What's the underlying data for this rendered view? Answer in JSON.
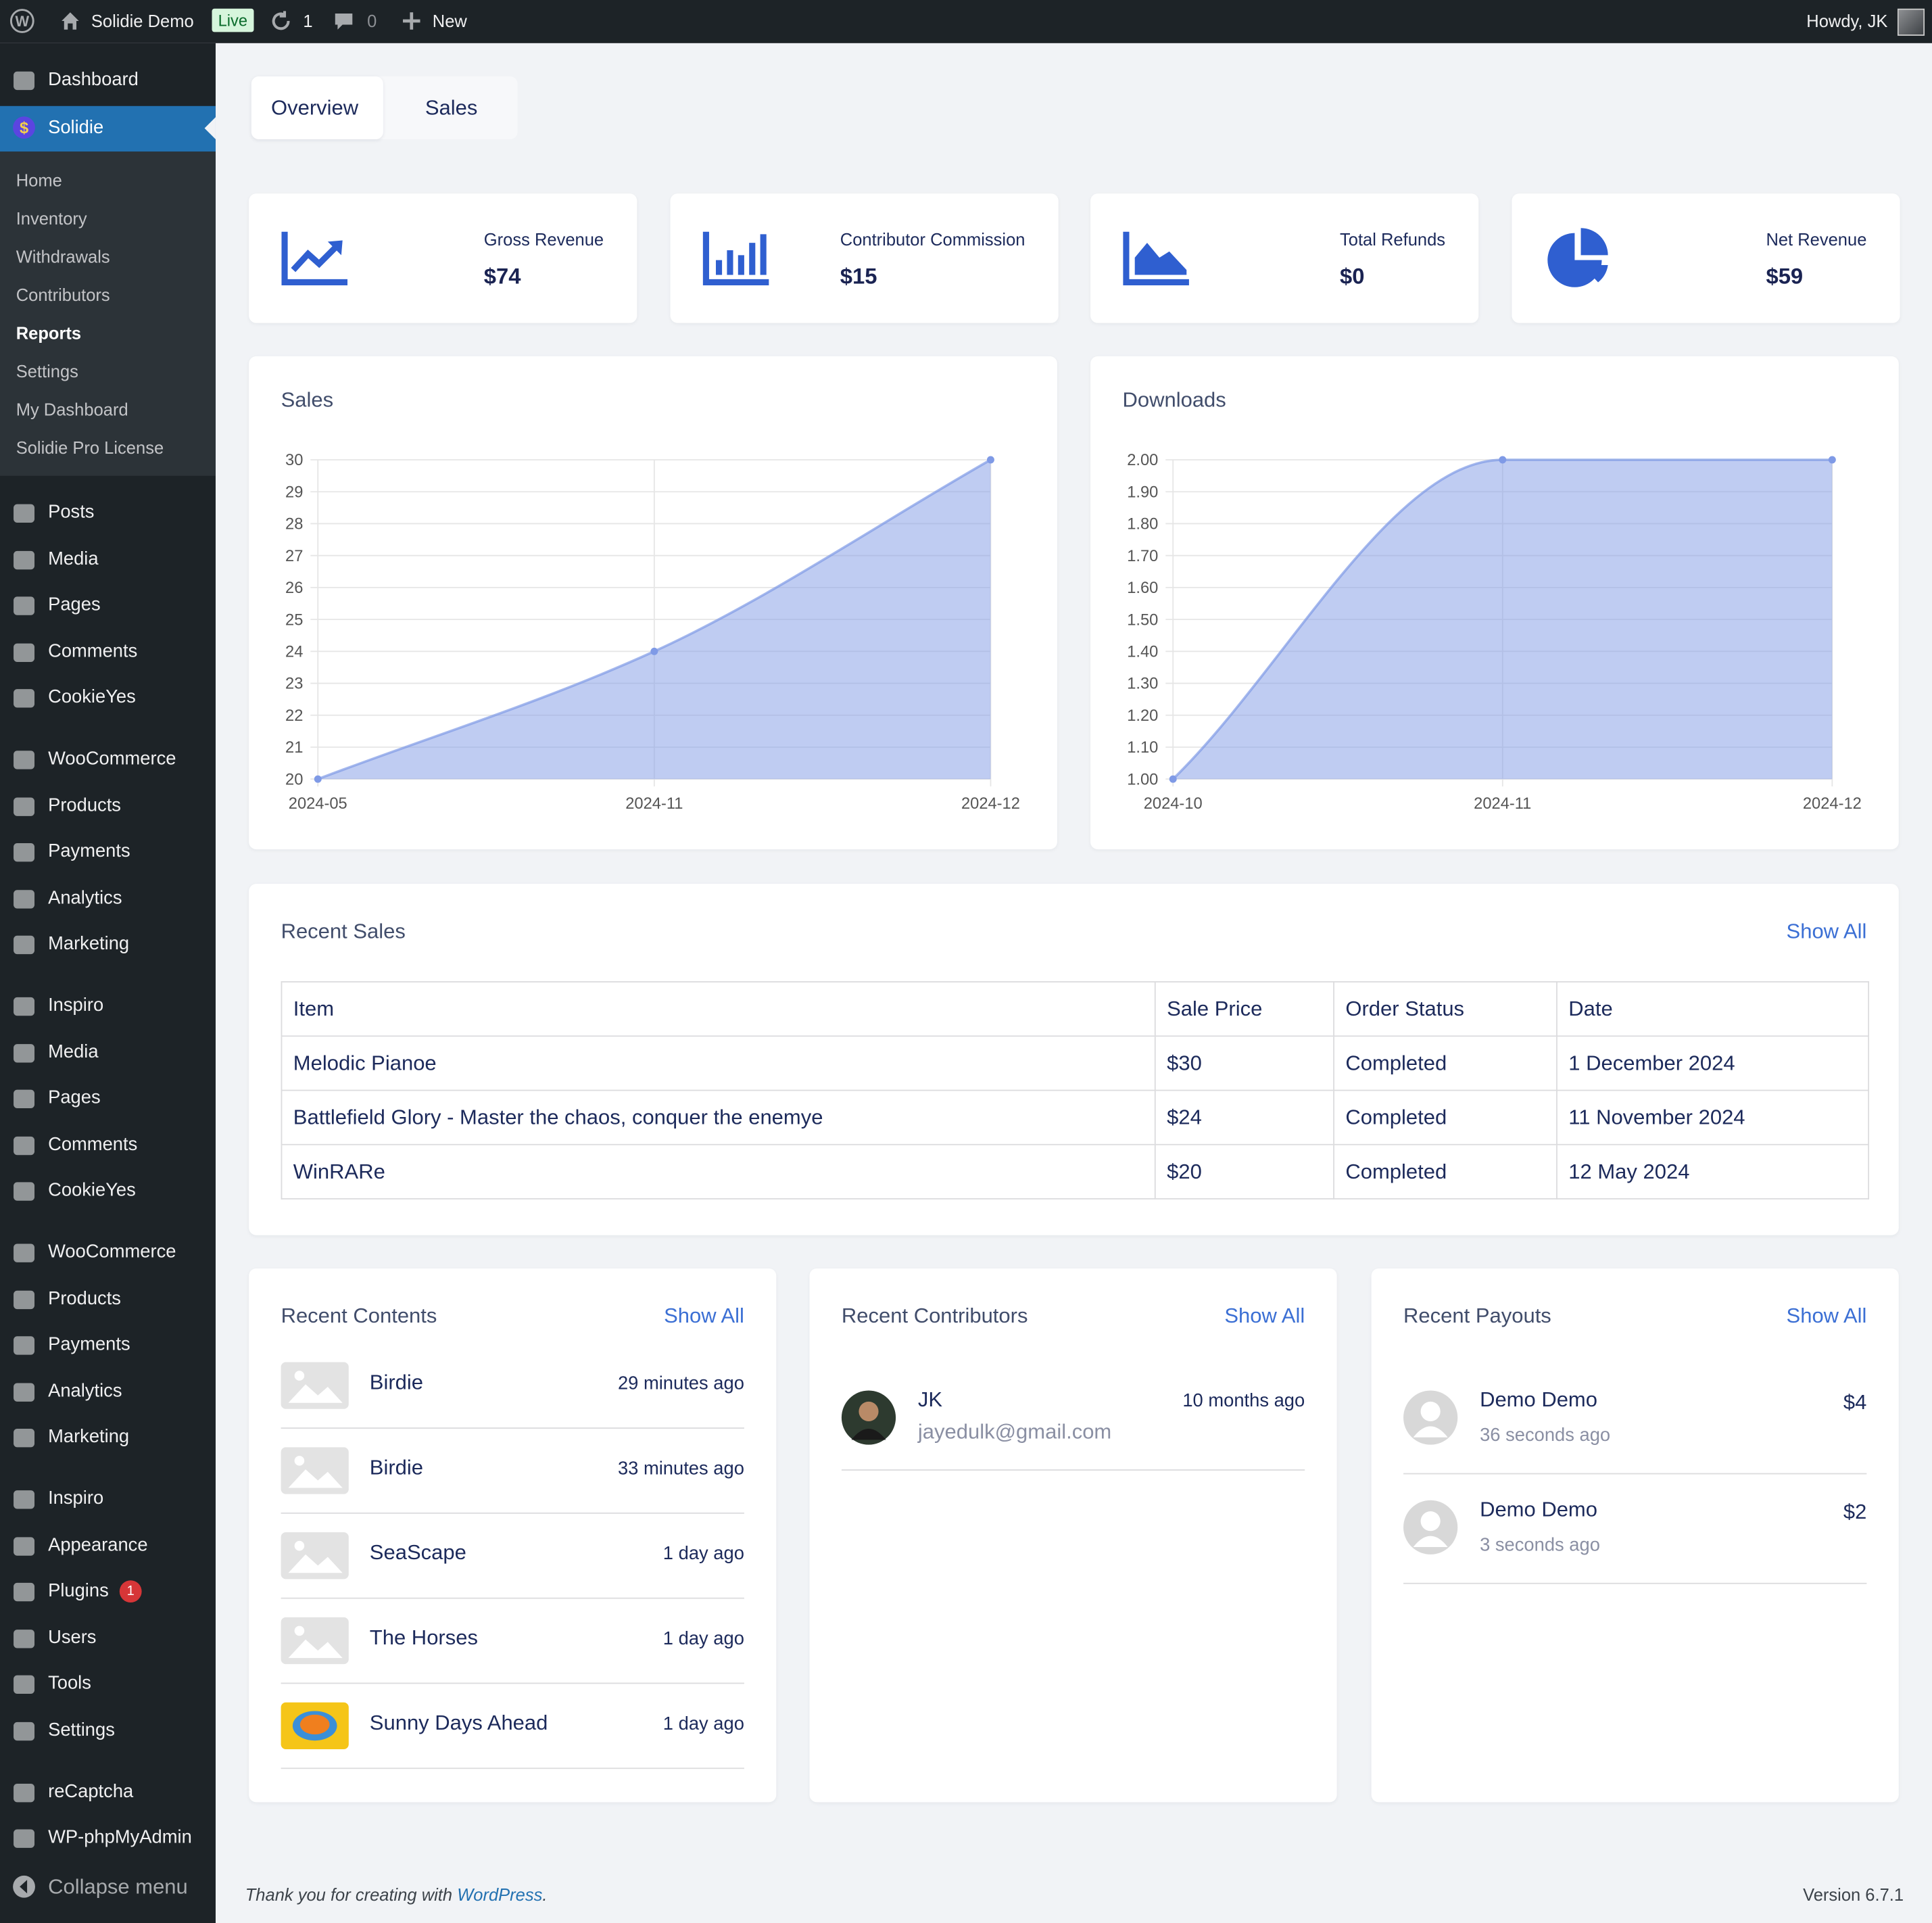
{
  "admin_bar": {
    "site_name": "Solidie Demo",
    "live": "Live",
    "updates": "1",
    "comments": "0",
    "new": "New",
    "greeting": "Howdy, JK"
  },
  "sidebar": {
    "dashboard": "Dashboard",
    "active": "Solidie",
    "submenu": [
      "Home",
      "Inventory",
      "Withdrawals",
      "Contributors",
      "Reports",
      "Settings",
      "My Dashboard",
      "Solidie Pro License"
    ],
    "groups": [
      [
        "Posts",
        "Media",
        "Pages",
        "Comments",
        "CookieYes"
      ],
      [
        "WooCommerce",
        "Products",
        "Payments",
        "Analytics",
        "Marketing"
      ],
      [
        "Inspiro",
        "Media",
        "Pages",
        "Comments",
        "CookieYes"
      ],
      [
        "WooCommerce",
        "Products",
        "Payments",
        "Analytics",
        "Marketing"
      ],
      [
        "Inspiro",
        "Appearance",
        "Plugins",
        "Users",
        "Tools",
        "Settings"
      ],
      [
        "reCaptcha",
        "WP-phpMyAdmin"
      ]
    ],
    "plugins_badge": "1",
    "collapse": "Collapse menu"
  },
  "tabs": [
    "Overview",
    "Sales"
  ],
  "stats": [
    {
      "label": "Gross Revenue",
      "value": "$74"
    },
    {
      "label": "Contributor Commission",
      "value": "$15"
    },
    {
      "label": "Total Refunds",
      "value": "$0"
    },
    {
      "label": "Net Revenue",
      "value": "$59"
    }
  ],
  "charts": [
    {
      "type": "area",
      "title": "Sales",
      "categories": [
        "2024-05",
        "2024-11",
        "2024-12"
      ],
      "values": [
        20,
        24,
        30
      ],
      "ylim": [
        20,
        30
      ],
      "yticks": [
        20,
        21,
        22,
        23,
        24,
        25,
        26,
        27,
        28,
        29,
        30
      ],
      "color": "#7f9ae6",
      "grid": true
    },
    {
      "type": "area",
      "title": "Downloads",
      "categories": [
        "2024-10",
        "2024-11",
        "2024-12"
      ],
      "values": [
        1,
        2,
        2
      ],
      "ylim": [
        1,
        2
      ],
      "yticks": [
        {
          "value": 1,
          "label": "1.00"
        },
        {
          "value": 1.1,
          "label": "1.10"
        },
        {
          "value": 1.2,
          "label": "1.20"
        },
        {
          "value": 1.3,
          "label": "1.30"
        },
        {
          "value": 1.4,
          "label": "1.40"
        },
        {
          "value": 1.5,
          "label": "1.50"
        },
        {
          "value": 1.6,
          "label": "1.60"
        },
        {
          "value": 1.7,
          "label": "1.70"
        },
        {
          "value": 1.8,
          "label": "1.80"
        },
        {
          "value": 1.9,
          "label": "1.90"
        },
        {
          "value": 2,
          "label": "2.00"
        }
      ],
      "color": "#7f9ae6",
      "grid": true
    }
  ],
  "recent_sales": {
    "title": "Recent Sales",
    "show_all": "Show All",
    "columns": [
      "Item",
      "Sale Price",
      "Order Status",
      "Date"
    ],
    "rows": [
      [
        "Melodic Pianoe",
        "$30",
        "Completed",
        "1 December 2024"
      ],
      [
        "Battlefield Glory - Master the chaos, conquer the enemye",
        "$24",
        "Completed",
        "11 November 2024"
      ],
      [
        "WinRARe",
        "$20",
        "Completed",
        "12 May 2024"
      ]
    ]
  },
  "recent_contents": {
    "title": "Recent Contents",
    "show_all": "Show All",
    "items": [
      {
        "title": "Birdie",
        "time": "29 minutes ago"
      },
      {
        "title": "Birdie",
        "time": "33 minutes ago"
      },
      {
        "title": "SeaScape",
        "time": "1 day ago"
      },
      {
        "title": "The Horses",
        "time": "1 day ago"
      },
      {
        "title": "Sunny Days Ahead",
        "time": "1 day ago"
      }
    ]
  },
  "recent_contributors": {
    "title": "Recent Contributors",
    "show_all": "Show All",
    "items": [
      {
        "name": "JK",
        "email": "jayedulk@gmail.com",
        "time": "10 months ago"
      }
    ]
  },
  "recent_payouts": {
    "title": "Recent Payouts",
    "show_all": "Show All",
    "items": [
      {
        "name": "Demo Demo",
        "time": "36 seconds ago",
        "amount": "$4"
      },
      {
        "name": "Demo Demo",
        "time": "3 seconds ago",
        "amount": "$2"
      }
    ]
  },
  "footer": {
    "text_before": "Thank you for creating with ",
    "link": "WordPress",
    "text_after": ".",
    "version": "Version 6.7.1"
  }
}
